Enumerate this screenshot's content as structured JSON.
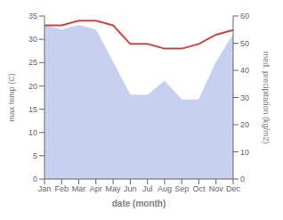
{
  "chart_data": {
    "type": "line",
    "categories": [
      "Jan",
      "Feb",
      "Mar",
      "Apr",
      "May",
      "Jun",
      "Jul",
      "Aug",
      "Sep",
      "Oct",
      "Nov",
      "Dec"
    ],
    "series": [
      {
        "type": "area",
        "axis": "y2",
        "color": "#c8d0f0",
        "values": [
          56.57142857142857,
          54.857142857142854,
          56.57142857142857,
          54.857142857142854,
          42.857142857142854,
          30.857142857142858,
          30.857142857142858,
          36.0,
          29.142857142857142,
          29.142857142857142,
          42.857142857142854,
          53.142857142857146
        ]
      },
      {
        "type": "line",
        "color": "#cc4444",
        "values": [
          33,
          33,
          34,
          34,
          33,
          29,
          29,
          28,
          28,
          29,
          31,
          32
        ]
      }
    ],
    "xlabel": "date (month)",
    "ylabel": "max temp (C)",
    "y2label": "med. precipitation (kg/m2)",
    "ylim": [
      0,
      35
    ],
    "yticks": [
      0,
      5,
      10,
      15,
      20,
      25,
      30,
      35
    ],
    "y2lim": [
      0,
      60
    ],
    "y2ticks": [
      0,
      10,
      20,
      30,
      40,
      50,
      60
    ],
    "grid": false
  }
}
